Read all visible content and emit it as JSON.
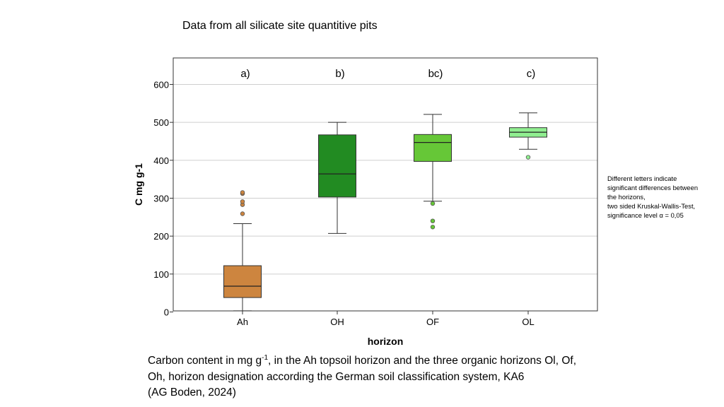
{
  "slide_title": "Data from all silicate site quantitive pits",
  "chart_data": {
    "type": "box",
    "title": "",
    "xlabel": "horizon",
    "ylabel": "C mg g-1",
    "ylim": [
      0,
      660
    ],
    "yticks": [
      0,
      100,
      200,
      300,
      400,
      500,
      600
    ],
    "grid": "horizontal",
    "categories": [
      "Ah",
      "OH",
      "OF",
      "OL"
    ],
    "groups": [
      {
        "category": "Ah",
        "letter": "a)",
        "whisker_low": 3,
        "q1": 38,
        "median": 68,
        "q3": 122,
        "whisker_high": 233,
        "outliers": [
          259,
          283,
          291,
          312,
          315
        ],
        "color": "#CD853F"
      },
      {
        "category": "OH",
        "letter": "b)",
        "whisker_low": 207,
        "q1": 303,
        "median": 364,
        "q3": 467,
        "whisker_high": 500,
        "outliers": [],
        "color": "#228B22"
      },
      {
        "category": "OF",
        "letter": "bc)",
        "whisker_low": 292,
        "q1": 397,
        "median": 447,
        "q3": 468,
        "whisker_high": 521,
        "outliers": [
          224,
          240,
          286
        ],
        "color": "#66C737"
      },
      {
        "category": "OL",
        "letter": "c)",
        "whisker_low": 429,
        "q1": 461,
        "median": 474,
        "q3": 486,
        "whisker_high": 525,
        "outliers": [
          408
        ],
        "color": "#90EE90"
      }
    ]
  },
  "note": {
    "lines": [
      "Different letters indicate",
      "significant differences between",
      "the horizons,",
      "two sided Kruskal-Wallis-Test,",
      "significance level α = 0,05"
    ]
  },
  "caption": {
    "line1_a": "Carbon content in mg g",
    "line1_sup": "-1",
    "line1_b": ", in the Ah topsoil horizon and the three organic horizons Ol, Of,",
    "line2": "Oh, horizon designation according the German soil classification system, KA6",
    "line3": "(AG Boden, 2024)"
  }
}
